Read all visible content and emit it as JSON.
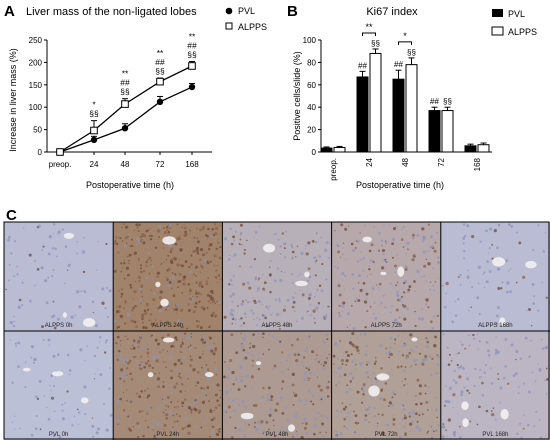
{
  "panel_letters": {
    "a": "A",
    "b": "B",
    "c": "C"
  },
  "chart_data": [
    {
      "type": "line",
      "title": "Liver mass of the non-ligated lobes",
      "xlabel": "Postoperative time (h)",
      "ylabel": "Increase in liver mass (%)",
      "categories": [
        "preop.",
        "24",
        "48",
        "72",
        "168"
      ],
      "ylim": [
        0,
        250
      ],
      "yticks": [
        0,
        50,
        100,
        150,
        200,
        250
      ],
      "grid": false,
      "legend_position": "top-right",
      "series": [
        {
          "name": "PVL",
          "marker": "filled-circle",
          "color": "#000000",
          "values": [
            0,
            27,
            53,
            112,
            145
          ],
          "errors": [
            3,
            8,
            10,
            12,
            8
          ]
        },
        {
          "name": "ALPPS",
          "marker": "open-square",
          "color": "#000000",
          "values": [
            0,
            48,
            107,
            157,
            192
          ],
          "errors": [
            3,
            22,
            12,
            8,
            10
          ]
        }
      ],
      "annotations": [
        {
          "category": "24",
          "lines": [
            "*",
            "§§"
          ]
        },
        {
          "category": "48",
          "lines": [
            "**",
            "##",
            "§§"
          ]
        },
        {
          "category": "72",
          "lines": [
            "**",
            "##",
            "§§"
          ]
        },
        {
          "category": "168",
          "lines": [
            "**",
            "##",
            "§§"
          ]
        }
      ]
    },
    {
      "type": "bar",
      "title": "Ki67 index",
      "xlabel": "Postoperative time (h)",
      "ylabel": "Positive cells/slide (%)",
      "categories": [
        "preop.",
        "24",
        "48",
        "72",
        "168"
      ],
      "ylim": [
        0,
        100
      ],
      "yticks": [
        0,
        20,
        40,
        60,
        80,
        100
      ],
      "grid": false,
      "legend_position": "top-right",
      "series": [
        {
          "name": "PVL",
          "color": "#000000",
          "values": [
            3.5,
            67,
            65,
            37,
            5.5
          ],
          "errors": [
            1,
            5,
            8,
            3,
            1.5
          ],
          "labels": [
            "",
            "##",
            "##",
            "##",
            ""
          ]
        },
        {
          "name": "ALPPS",
          "color": "#ffffff",
          "values": [
            4,
            88,
            78,
            37,
            6.5
          ],
          "errors": [
            1,
            4,
            6,
            3,
            1.5
          ],
          "labels": [
            "",
            "§§",
            "§§",
            "§§",
            ""
          ]
        }
      ],
      "brackets": [
        {
          "category": "24",
          "label": "**"
        },
        {
          "category": "48",
          "label": "*"
        }
      ]
    }
  ],
  "micrographs": {
    "rows": [
      {
        "group": "ALPPS",
        "cells": [
          {
            "label": "ALPPS 0h",
            "stain": 0.05,
            "base": "#b9bcd2"
          },
          {
            "label": "ALPPS 24h",
            "stain": 0.75,
            "base": "#a1826b"
          },
          {
            "label": "ALPPS 48h",
            "stain": 0.3,
            "base": "#b8b0b8"
          },
          {
            "label": "ALPPS 72h",
            "stain": 0.35,
            "base": "#b7a8ac"
          },
          {
            "label": "ALPPS 168h",
            "stain": 0.05,
            "base": "#b9bcd2"
          }
        ]
      },
      {
        "group": "PVL",
        "cells": [
          {
            "label": "PVL 0h",
            "stain": 0.05,
            "base": "#bcc0d6"
          },
          {
            "label": "PVL 24h",
            "stain": 0.6,
            "base": "#a58b77"
          },
          {
            "label": "PVL 48h",
            "stain": 0.4,
            "base": "#ad9a92"
          },
          {
            "label": "PVL 72h",
            "stain": 0.45,
            "base": "#b0a097"
          },
          {
            "label": "PVL 168h",
            "stain": 0.15,
            "base": "#bcb6c4"
          }
        ]
      }
    ]
  }
}
